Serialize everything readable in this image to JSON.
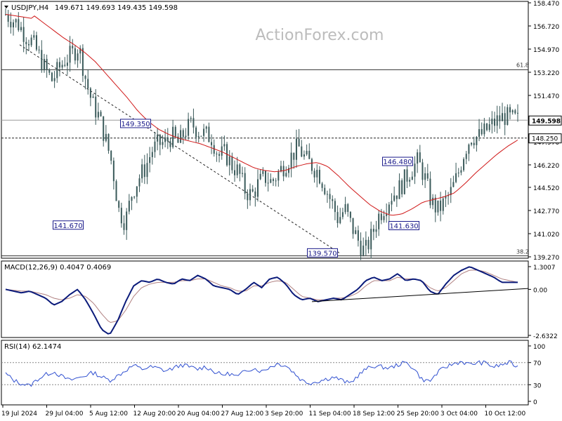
{
  "colors": {
    "candle": "#3a5a5a",
    "ma": "#d01818",
    "macd": "#0a1a7a",
    "signal": "#b08080",
    "rsi": "#3050d0",
    "level": "#333333",
    "label_border": "#1a1a8a",
    "label_text": "#1a1a8a",
    "price_box_bg": "#ffffff",
    "watermark": "#bcbcbc",
    "axis_text": "#000000"
  },
  "header": {
    "symbol": "USDJPY,H4",
    "ohlc": "149.671 149.693 149.435 149.598"
  },
  "watermark": "ActionForex.com",
  "chart_data": [
    {
      "type": "candlestick",
      "panel": "price",
      "y_ticks": [
        "158.470",
        "156.720",
        "154.970",
        "153.220",
        "151.470",
        "149.720",
        "147.970",
        "146.220",
        "144.520",
        "142.770",
        "141.020",
        "139.270"
      ],
      "ylim": [
        139.27,
        158.47
      ],
      "fib_labels": {
        "upper": "61.8",
        "lower": "38.2"
      },
      "fib_values": {
        "upper": 153.41,
        "lower": 139.34
      },
      "current_price": "149.598",
      "current_value": 149.598,
      "support_level": "148.250",
      "support_value": 148.25,
      "annotations": [
        {
          "text": "149.350",
          "value": 149.35
        },
        {
          "text": "141.670",
          "value": 141.67
        },
        {
          "text": "139.570",
          "value": 139.57
        },
        {
          "text": "146.480",
          "value": 146.48
        },
        {
          "text": "141.630",
          "value": 141.63
        }
      ],
      "x_labels": [
        "19 Jul 2024",
        "29 Jul 04:00",
        "5 Aug 12:00",
        "12 Aug 20:00",
        "20 Aug 04:00",
        "27 Aug 12:00",
        "3 Sep 20:00",
        "11 Sep 04:00",
        "18 Sep 12:00",
        "25 Sep 20:00",
        "3 Oct 04:00",
        "10 Oct 12:00"
      ],
      "close_path": [
        157.6,
        157.2,
        156.8,
        156.0,
        155.5,
        154.5,
        153.4,
        152.6,
        153.5,
        154.2,
        154.6,
        155.2,
        152.8,
        150.9,
        149.9,
        148.2,
        146.3,
        142.8,
        141.9,
        144.1,
        145.2,
        146.0,
        147.3,
        147.8,
        147.9,
        148.4,
        147.8,
        148.8,
        149.3,
        148.8,
        148.5,
        148.3,
        146.9,
        147.1,
        146.2,
        145.7,
        144.3,
        143.9,
        144.8,
        145.3,
        144.9,
        145.6,
        146.3,
        146.9,
        147.6,
        146.7,
        146.2,
        145.7,
        144.6,
        143.4,
        142.1,
        142.9,
        141.6,
        140.5,
        139.6,
        140.8,
        142.3,
        143.1,
        143.9,
        144.3,
        145.1,
        145.9,
        146.5,
        145.3,
        143.4,
        142.8,
        143.4,
        144.2,
        145.5,
        147.3,
        148.4,
        148.3,
        148.7,
        149.2,
        149.6,
        149.9,
        149.7,
        149.6
      ],
      "ma_path": [
        157.6,
        157.0,
        156.4,
        155.8,
        155.3,
        154.7,
        154.0,
        153.1,
        152.2,
        151.3,
        150.3,
        149.5,
        148.9,
        148.5,
        148.2,
        148.0,
        147.8,
        147.5,
        147.2,
        146.8,
        146.4,
        146.0,
        145.8,
        145.7,
        145.8,
        146.1,
        146.3,
        146.4,
        146.1,
        145.4,
        144.6,
        143.9,
        143.2,
        142.7,
        142.4,
        142.5,
        142.9,
        143.4,
        143.6,
        143.8,
        144.1,
        144.8,
        145.6,
        146.3,
        147.0,
        147.6,
        148.1
      ],
      "ma_start": 4,
      "ma_step": 2
    },
    {
      "type": "line",
      "panel": "macd",
      "label": "MACD(12,26,9) 0.4047 0.4069",
      "y_ticks": [
        "1.3007",
        "0.00",
        "-2.6322"
      ],
      "y_values": [
        1.3007,
        0.0,
        -2.6322
      ],
      "macd_path": [
        0.0,
        -0.1,
        -0.2,
        -0.1,
        -0.3,
        -0.5,
        -0.9,
        -0.7,
        -0.3,
        0.0,
        -0.6,
        -1.4,
        -2.3,
        -2.6,
        -1.8,
        -0.7,
        0.2,
        0.5,
        0.4,
        0.6,
        0.4,
        0.3,
        0.6,
        0.5,
        0.8,
        0.6,
        0.2,
        0.1,
        0.0,
        -0.3,
        0.0,
        0.4,
        0.1,
        0.6,
        0.7,
        0.3,
        -0.3,
        -0.6,
        -0.5,
        -0.7,
        -0.6,
        -0.5,
        -0.6,
        -0.3,
        0.0,
        0.5,
        0.7,
        0.5,
        0.6,
        0.9,
        0.5,
        0.6,
        0.5,
        -0.1,
        -0.3,
        0.3,
        0.8,
        1.1,
        1.3,
        1.1,
        0.9,
        0.7,
        0.4,
        0.4,
        0.4
      ],
      "signal_path": [
        0.0,
        -0.05,
        -0.1,
        -0.1,
        -0.2,
        -0.3,
        -0.5,
        -0.6,
        -0.5,
        -0.3,
        -0.4,
        -0.8,
        -1.4,
        -1.9,
        -1.8,
        -1.2,
        -0.4,
        0.1,
        0.3,
        0.4,
        0.4,
        0.4,
        0.5,
        0.5,
        0.6,
        0.6,
        0.4,
        0.2,
        0.1,
        -0.1,
        -0.1,
        0.2,
        0.2,
        0.4,
        0.5,
        0.4,
        0.0,
        -0.4,
        -0.5,
        -0.6,
        -0.6,
        -0.5,
        -0.5,
        -0.4,
        -0.2,
        0.2,
        0.5,
        0.5,
        0.5,
        0.7,
        0.6,
        0.6,
        0.5,
        0.1,
        -0.1,
        0.1,
        0.5,
        0.9,
        1.1,
        1.1,
        1.0,
        0.8,
        0.6,
        0.5,
        0.4
      ],
      "trendline": {
        "from": -0.7,
        "to": 0.05
      }
    },
    {
      "type": "line",
      "panel": "rsi",
      "label": "RSI(14) 62.1474",
      "y_ticks": [
        "100",
        "70",
        "30",
        "0"
      ],
      "y_values": [
        100,
        70,
        30,
        0
      ],
      "rsi_path": [
        50,
        38,
        32,
        28,
        40,
        48,
        54,
        45,
        38,
        42,
        47,
        52,
        44,
        38,
        46,
        56,
        65,
        58,
        62,
        60,
        55,
        60,
        66,
        62,
        58,
        63,
        54,
        48,
        50,
        44,
        56,
        60,
        54,
        62,
        68,
        65,
        52,
        38,
        33,
        36,
        40,
        44,
        38,
        32,
        46,
        58,
        64,
        62,
        60,
        66,
        70,
        60,
        40,
        36,
        52,
        62,
        68,
        72,
        66,
        70,
        69,
        62,
        66,
        70,
        62
      ]
    }
  ]
}
